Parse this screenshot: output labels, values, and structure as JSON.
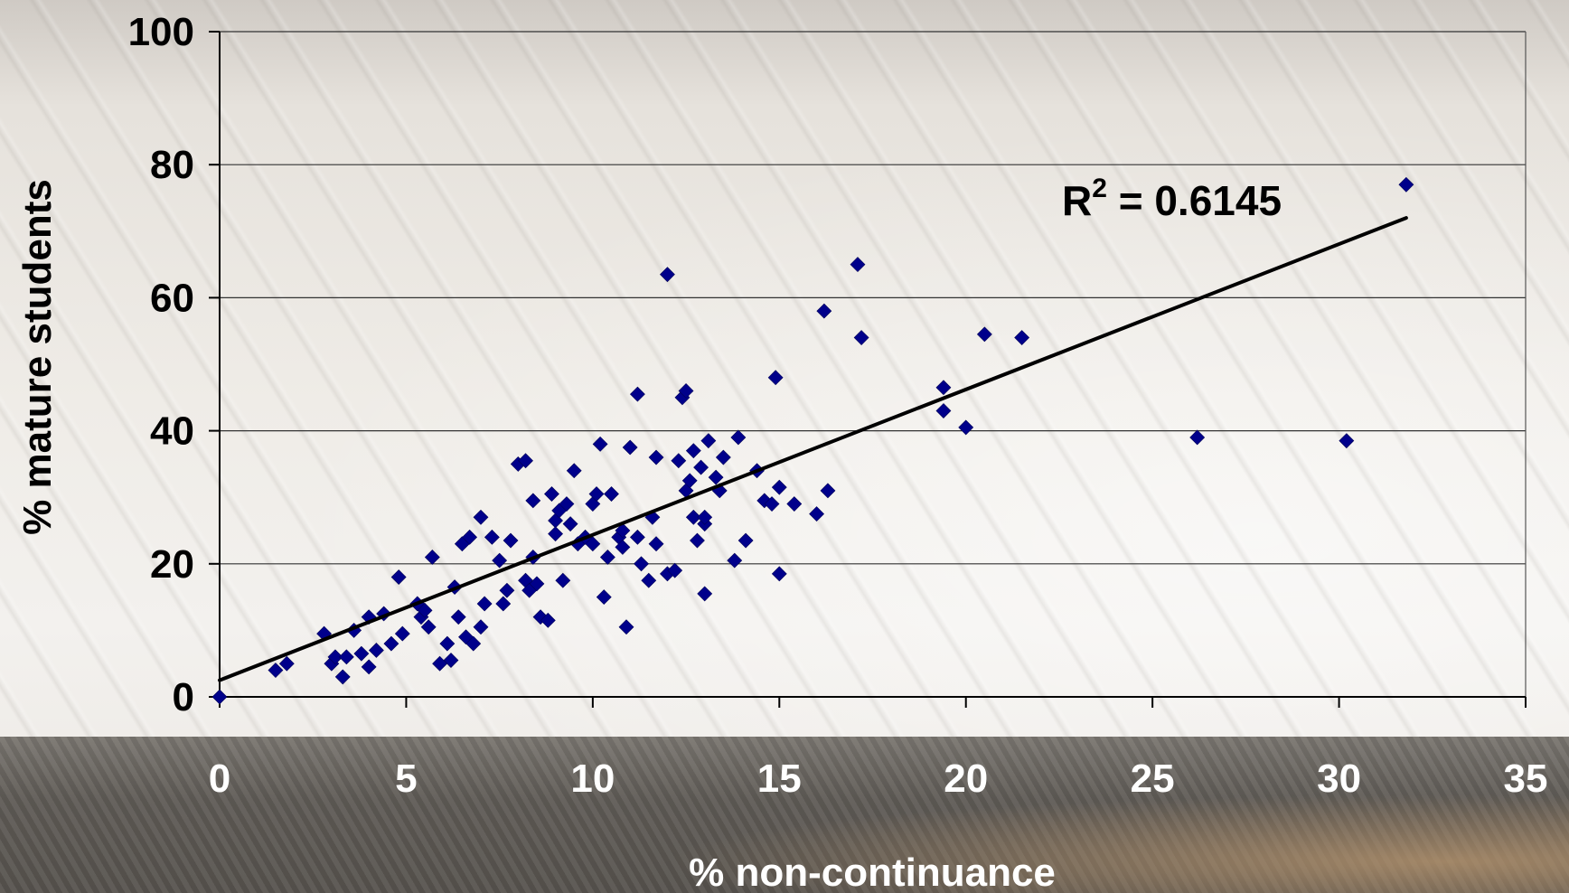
{
  "chart_data": {
    "type": "scatter",
    "xlabel": "% non-continuance",
    "ylabel": "% mature students",
    "xlim": [
      0,
      35
    ],
    "ylim": [
      0,
      100
    ],
    "x_ticks": [
      "0",
      "5",
      "10",
      "15",
      "20",
      "25",
      "30",
      "35"
    ],
    "y_ticks": [
      "0",
      "20",
      "40",
      "60",
      "80",
      "100"
    ],
    "grid": "horizontal",
    "marker_color": "#00008b",
    "trendline": {
      "type": "linear",
      "from": [
        0,
        2.5
      ],
      "to": [
        31.8,
        72
      ],
      "color": "#000000"
    },
    "annotation": {
      "r2_prefix": "R",
      "r2_sup": "2",
      "r2_value": " = 0.6145"
    },
    "points": [
      [
        0,
        0
      ],
      [
        1.5,
        4
      ],
      [
        1.8,
        5
      ],
      [
        2.8,
        9.5
      ],
      [
        3.0,
        5
      ],
      [
        3.1,
        6
      ],
      [
        3.3,
        3
      ],
      [
        3.4,
        6
      ],
      [
        3.6,
        10
      ],
      [
        3.8,
        6.5
      ],
      [
        4.0,
        4.5
      ],
      [
        4.2,
        7
      ],
      [
        4.0,
        12
      ],
      [
        4.4,
        12.5
      ],
      [
        4.6,
        8
      ],
      [
        4.8,
        18
      ],
      [
        4.9,
        9.5
      ],
      [
        5.3,
        14
      ],
      [
        5.4,
        12
      ],
      [
        5.5,
        13
      ],
      [
        5.6,
        10.5
      ],
      [
        5.7,
        21
      ],
      [
        5.9,
        5
      ],
      [
        6.1,
        8
      ],
      [
        6.2,
        5.5
      ],
      [
        6.3,
        16.5
      ],
      [
        6.4,
        12
      ],
      [
        6.5,
        23
      ],
      [
        6.6,
        9
      ],
      [
        6.7,
        24
      ],
      [
        6.8,
        8
      ],
      [
        7.0,
        27
      ],
      [
        7.0,
        10.5
      ],
      [
        7.1,
        14
      ],
      [
        7.3,
        24
      ],
      [
        7.5,
        20.5
      ],
      [
        7.6,
        14
      ],
      [
        7.7,
        16
      ],
      [
        7.8,
        23.5
      ],
      [
        8.0,
        35
      ],
      [
        8.2,
        35.5
      ],
      [
        8.2,
        17.5
      ],
      [
        8.3,
        16
      ],
      [
        8.4,
        21
      ],
      [
        8.5,
        17
      ],
      [
        8.6,
        12
      ],
      [
        8.8,
        11.5
      ],
      [
        8.4,
        29.5
      ],
      [
        8.9,
        30.5
      ],
      [
        9.0,
        26.5
      ],
      [
        9.0,
        24.5
      ],
      [
        9.1,
        28
      ],
      [
        9.2,
        17.5
      ],
      [
        9.3,
        29
      ],
      [
        9.4,
        26
      ],
      [
        9.5,
        34
      ],
      [
        9.6,
        23
      ],
      [
        9.8,
        24
      ],
      [
        10.0,
        23
      ],
      [
        10.0,
        29
      ],
      [
        10.1,
        30.5
      ],
      [
        10.2,
        38
      ],
      [
        10.3,
        15
      ],
      [
        10.4,
        21
      ],
      [
        10.5,
        30.5
      ],
      [
        10.7,
        24
      ],
      [
        10.8,
        25
      ],
      [
        10.8,
        22.5
      ],
      [
        10.9,
        10.5
      ],
      [
        11.0,
        37.5
      ],
      [
        11.2,
        45.5
      ],
      [
        11.2,
        24
      ],
      [
        11.3,
        20
      ],
      [
        11.5,
        17.5
      ],
      [
        11.6,
        27
      ],
      [
        11.7,
        23
      ],
      [
        11.7,
        36
      ],
      [
        12.0,
        18.5
      ],
      [
        12.0,
        63.5
      ],
      [
        12.2,
        19
      ],
      [
        12.3,
        35.5
      ],
      [
        12.4,
        45
      ],
      [
        12.5,
        31
      ],
      [
        12.6,
        32.5
      ],
      [
        12.7,
        37
      ],
      [
        12.7,
        27
      ],
      [
        12.8,
        23.5
      ],
      [
        12.9,
        34.5
      ],
      [
        13.0,
        26
      ],
      [
        13.0,
        27
      ],
      [
        13.1,
        38.5
      ],
      [
        13.3,
        33
      ],
      [
        13.4,
        31
      ],
      [
        13.5,
        36
      ],
      [
        13.8,
        20.5
      ],
      [
        13.9,
        39
      ],
      [
        14.1,
        23.5
      ],
      [
        14.4,
        34
      ],
      [
        14.6,
        29.5
      ],
      [
        14.8,
        29
      ],
      [
        15.0,
        31.5
      ],
      [
        15.0,
        18.5
      ],
      [
        14.9,
        48
      ],
      [
        15.4,
        29
      ],
      [
        16.0,
        27.5
      ],
      [
        16.3,
        31
      ],
      [
        16.2,
        58
      ],
      [
        17.1,
        65
      ],
      [
        17.2,
        54
      ],
      [
        12.5,
        46
      ],
      [
        13.0,
        15.5
      ],
      [
        19.4,
        46.5
      ],
      [
        19.4,
        43
      ],
      [
        20.0,
        40.5
      ],
      [
        20.5,
        54.5
      ],
      [
        21.5,
        54
      ],
      [
        26.2,
        39
      ],
      [
        30.2,
        38.5
      ],
      [
        31.8,
        77
      ]
    ]
  }
}
